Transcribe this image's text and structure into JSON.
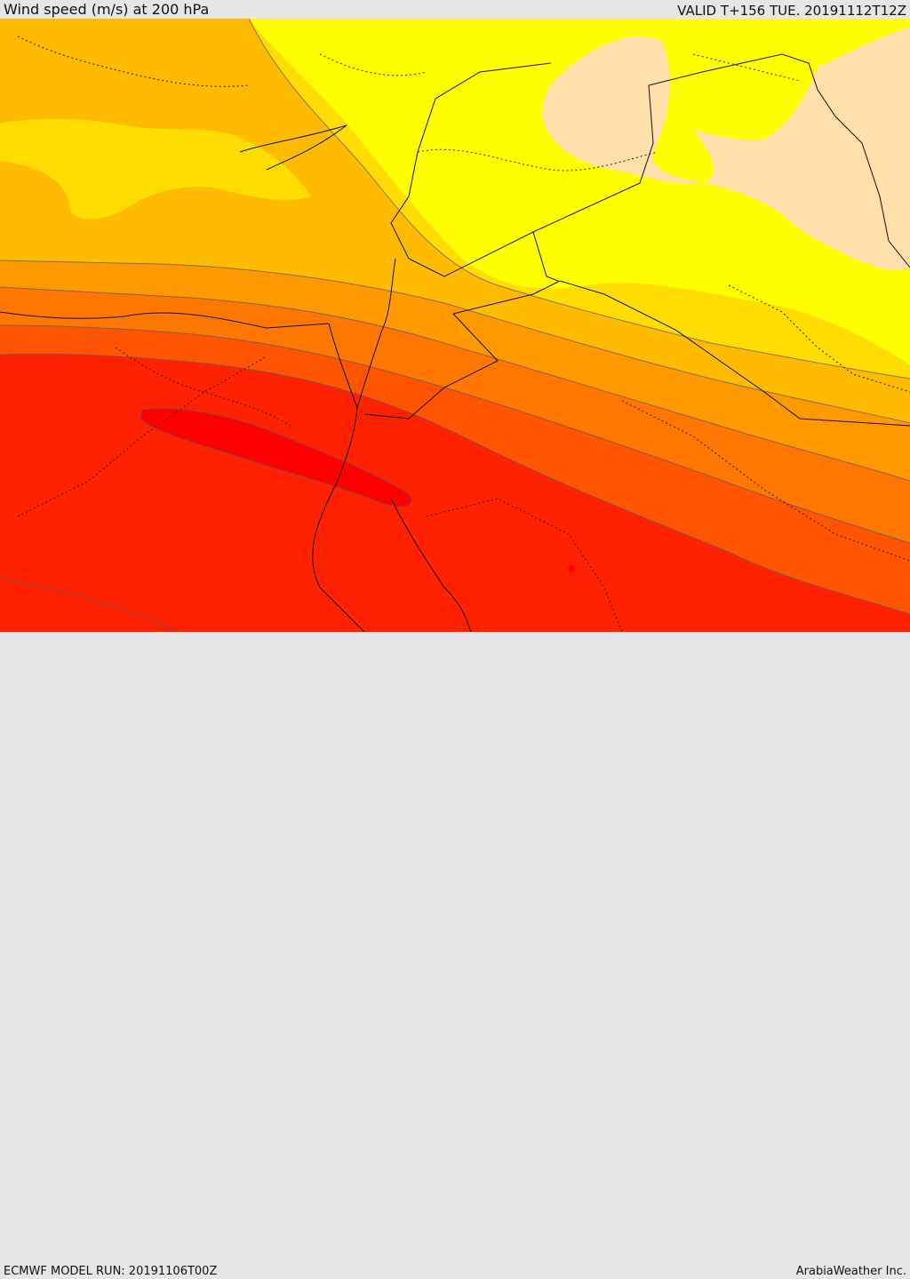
{
  "header": {
    "title": "Wind speed (m/s) at 200 hPa",
    "valid": "VALID T+156 TUE. 20191112T12Z"
  },
  "footer": {
    "model_run": "ECMWF MODEL RUN: 20191106T00Z",
    "credit": "ArabiaWeather Inc."
  },
  "colors": {
    "band_1": "#ffdfaa",
    "band_2": "#ffff00",
    "band_3": "#ffdd00",
    "band_4": "#ffbb00",
    "band_5": "#ff9900",
    "band_6": "#ff7700",
    "band_7": "#ff5500",
    "band_8": "#ff2200",
    "band_9": "#ff0000",
    "contour_line": "#555577",
    "border_line": "#111111"
  }
}
